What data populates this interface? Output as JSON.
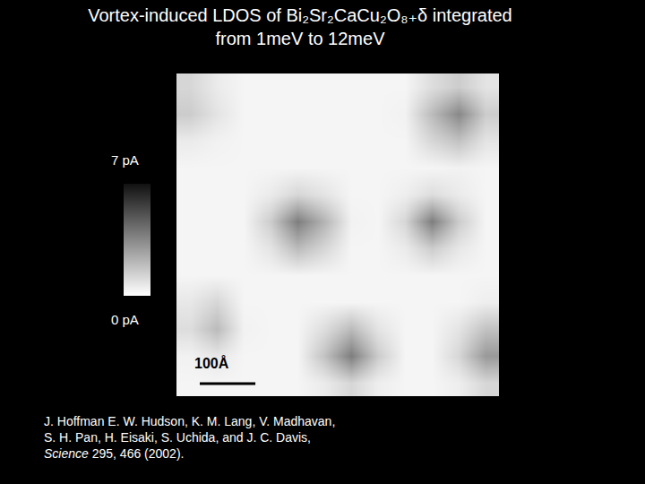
{
  "chart_data": {
    "type": "heatmap",
    "title": [
      "Vortex-induced LDOS of Bi₂Sr₂CaCu₂O₈₊δ integrated",
      "from 1meV to 12meV"
    ],
    "xlim": [
      0,
      580
    ],
    "ylim": [
      0,
      580
    ],
    "tick_labels": false,
    "values": [
      [
        1.2,
        0.6,
        0.3,
        0.3,
        0.3,
        0.3,
        0.3,
        0.3,
        0.3,
        1.0,
        1.5,
        0.8
      ],
      [
        1.5,
        0.8,
        0.3,
        0.3,
        0.3,
        0.3,
        0.3,
        0.3,
        0.4,
        2.0,
        3.5,
        1.5
      ],
      [
        0.6,
        0.4,
        0.3,
        0.3,
        0.3,
        0.3,
        0.3,
        0.3,
        0.3,
        1.2,
        1.8,
        0.8
      ],
      [
        0.3,
        0.3,
        0.3,
        0.3,
        0.3,
        0.3,
        0.3,
        0.3,
        0.3,
        0.3,
        0.4,
        0.3
      ],
      [
        0.3,
        0.3,
        0.3,
        0.6,
        1.2,
        0.8,
        0.3,
        0.3,
        0.5,
        1.0,
        0.6,
        0.3
      ],
      [
        0.3,
        0.3,
        0.3,
        1.5,
        3.8,
        2.2,
        0.4,
        0.3,
        1.2,
        3.8,
        1.5,
        0.3
      ],
      [
        0.3,
        0.3,
        0.3,
        0.8,
        2.0,
        1.2,
        0.3,
        0.3,
        0.6,
        1.5,
        0.7,
        0.3
      ],
      [
        0.3,
        0.3,
        0.3,
        0.3,
        0.3,
        0.3,
        0.3,
        0.3,
        0.3,
        0.3,
        0.3,
        0.3
      ],
      [
        0.7,
        1.2,
        0.3,
        0.3,
        0.3,
        0.3,
        0.3,
        0.3,
        0.3,
        0.3,
        0.3,
        0.5
      ],
      [
        1.0,
        2.0,
        0.4,
        0.3,
        0.3,
        1.0,
        2.0,
        0.8,
        0.3,
        0.3,
        0.8,
        1.8
      ],
      [
        0.4,
        0.7,
        0.3,
        0.3,
        0.3,
        1.8,
        3.8,
        1.5,
        0.3,
        0.3,
        1.2,
        3.0
      ],
      [
        0.3,
        0.3,
        0.3,
        0.3,
        0.3,
        0.6,
        1.2,
        0.5,
        0.3,
        0.3,
        0.5,
        1.2
      ]
    ],
    "colorbar": {
      "range": [
        0,
        7
      ],
      "ticks": [
        {
          "value": 0,
          "label": "0 pA"
        },
        {
          "value": 7,
          "label": "7 pA"
        }
      ]
    },
    "scale_bar": {
      "length": 100,
      "label": "100Å"
    }
  },
  "citation": {
    "lines": [
      "J. Hoffman E. W. Hudson, K. M. Lang, V. Madhavan,",
      "S. H. Pan, H. Eisaki, S. Uchida, and J. C. Davis,"
    ],
    "journal": "Science",
    "reference": " 295, 466 (2002)."
  }
}
